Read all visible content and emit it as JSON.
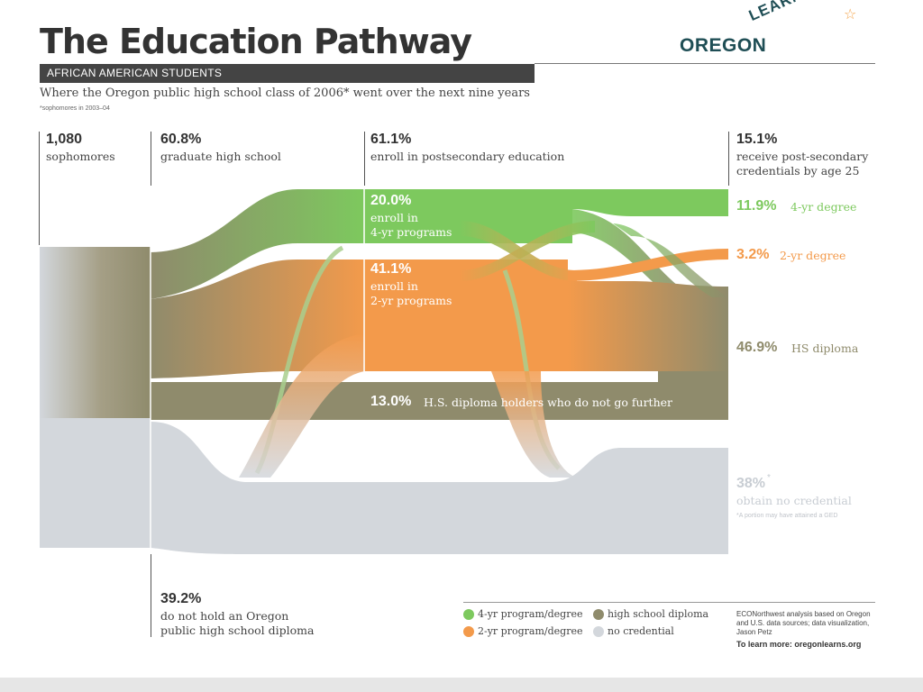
{
  "header": {
    "title": "The Education Pathway",
    "banner": "AFRICAN AMERICAN STUDENTS",
    "subtitle": "Where the Oregon public high school class of 2006* went over the next nine years",
    "footnote": "*sophomores in 2003–04"
  },
  "logo": {
    "primary": "OREGON",
    "secondary": "LEARNS",
    "star_icon": "star-icon"
  },
  "stages": {
    "sophomores": {
      "value": "1,080",
      "label": "sophomores"
    },
    "graduate": {
      "value": "60.8%",
      "label": "graduate high school"
    },
    "enroll": {
      "value": "61.1%",
      "label": "enroll in postsecondary education"
    },
    "credentials": {
      "value": "15.1%",
      "label_line1": "receive post-secondary",
      "label_line2": "credentials by age 25"
    },
    "no_diploma": {
      "value": "39.2%",
      "label_line1": "do not hold an Oregon",
      "label_line2": "public high school diploma"
    }
  },
  "flows": {
    "four_year": {
      "value": "20.0%",
      "line1": "enroll in",
      "line2": "4-yr programs"
    },
    "two_year": {
      "value": "41.1%",
      "line1": "enroll in",
      "line2": "2-yr programs"
    },
    "hs_only": {
      "value": "13.0%",
      "label": "H.S. diploma holders who do not go further"
    }
  },
  "outcomes": {
    "four_year_degree": {
      "value": "11.9%",
      "label": "4-yr degree"
    },
    "two_year_degree": {
      "value": "3.2%",
      "label": "2-yr degree"
    },
    "hs_diploma": {
      "value": "46.9%",
      "label": "HS diploma"
    },
    "no_credential": {
      "value": "38%",
      "marker": "*",
      "label": "obtain no credential",
      "note": "*A portion may have attained a GED"
    }
  },
  "legend": [
    {
      "label": "4-yr program/degree",
      "color": "#7dc95e"
    },
    {
      "label": "2-yr program/degree",
      "color": "#f39a4b"
    },
    {
      "label": "high school diploma",
      "color": "#8f8b6c"
    },
    {
      "label": "no credential",
      "color": "#d3d7dc"
    }
  ],
  "credit": {
    "text": "ECONorthwest analysis based on Oregon and U.S. data sources; data visualization, Jason Petz",
    "learn_more": "To learn more: oregonlearns.org"
  },
  "colors": {
    "green": "#7dc95e",
    "orange": "#f39a4b",
    "olive": "#8f8b6c",
    "gray": "#d3d7dc"
  }
}
